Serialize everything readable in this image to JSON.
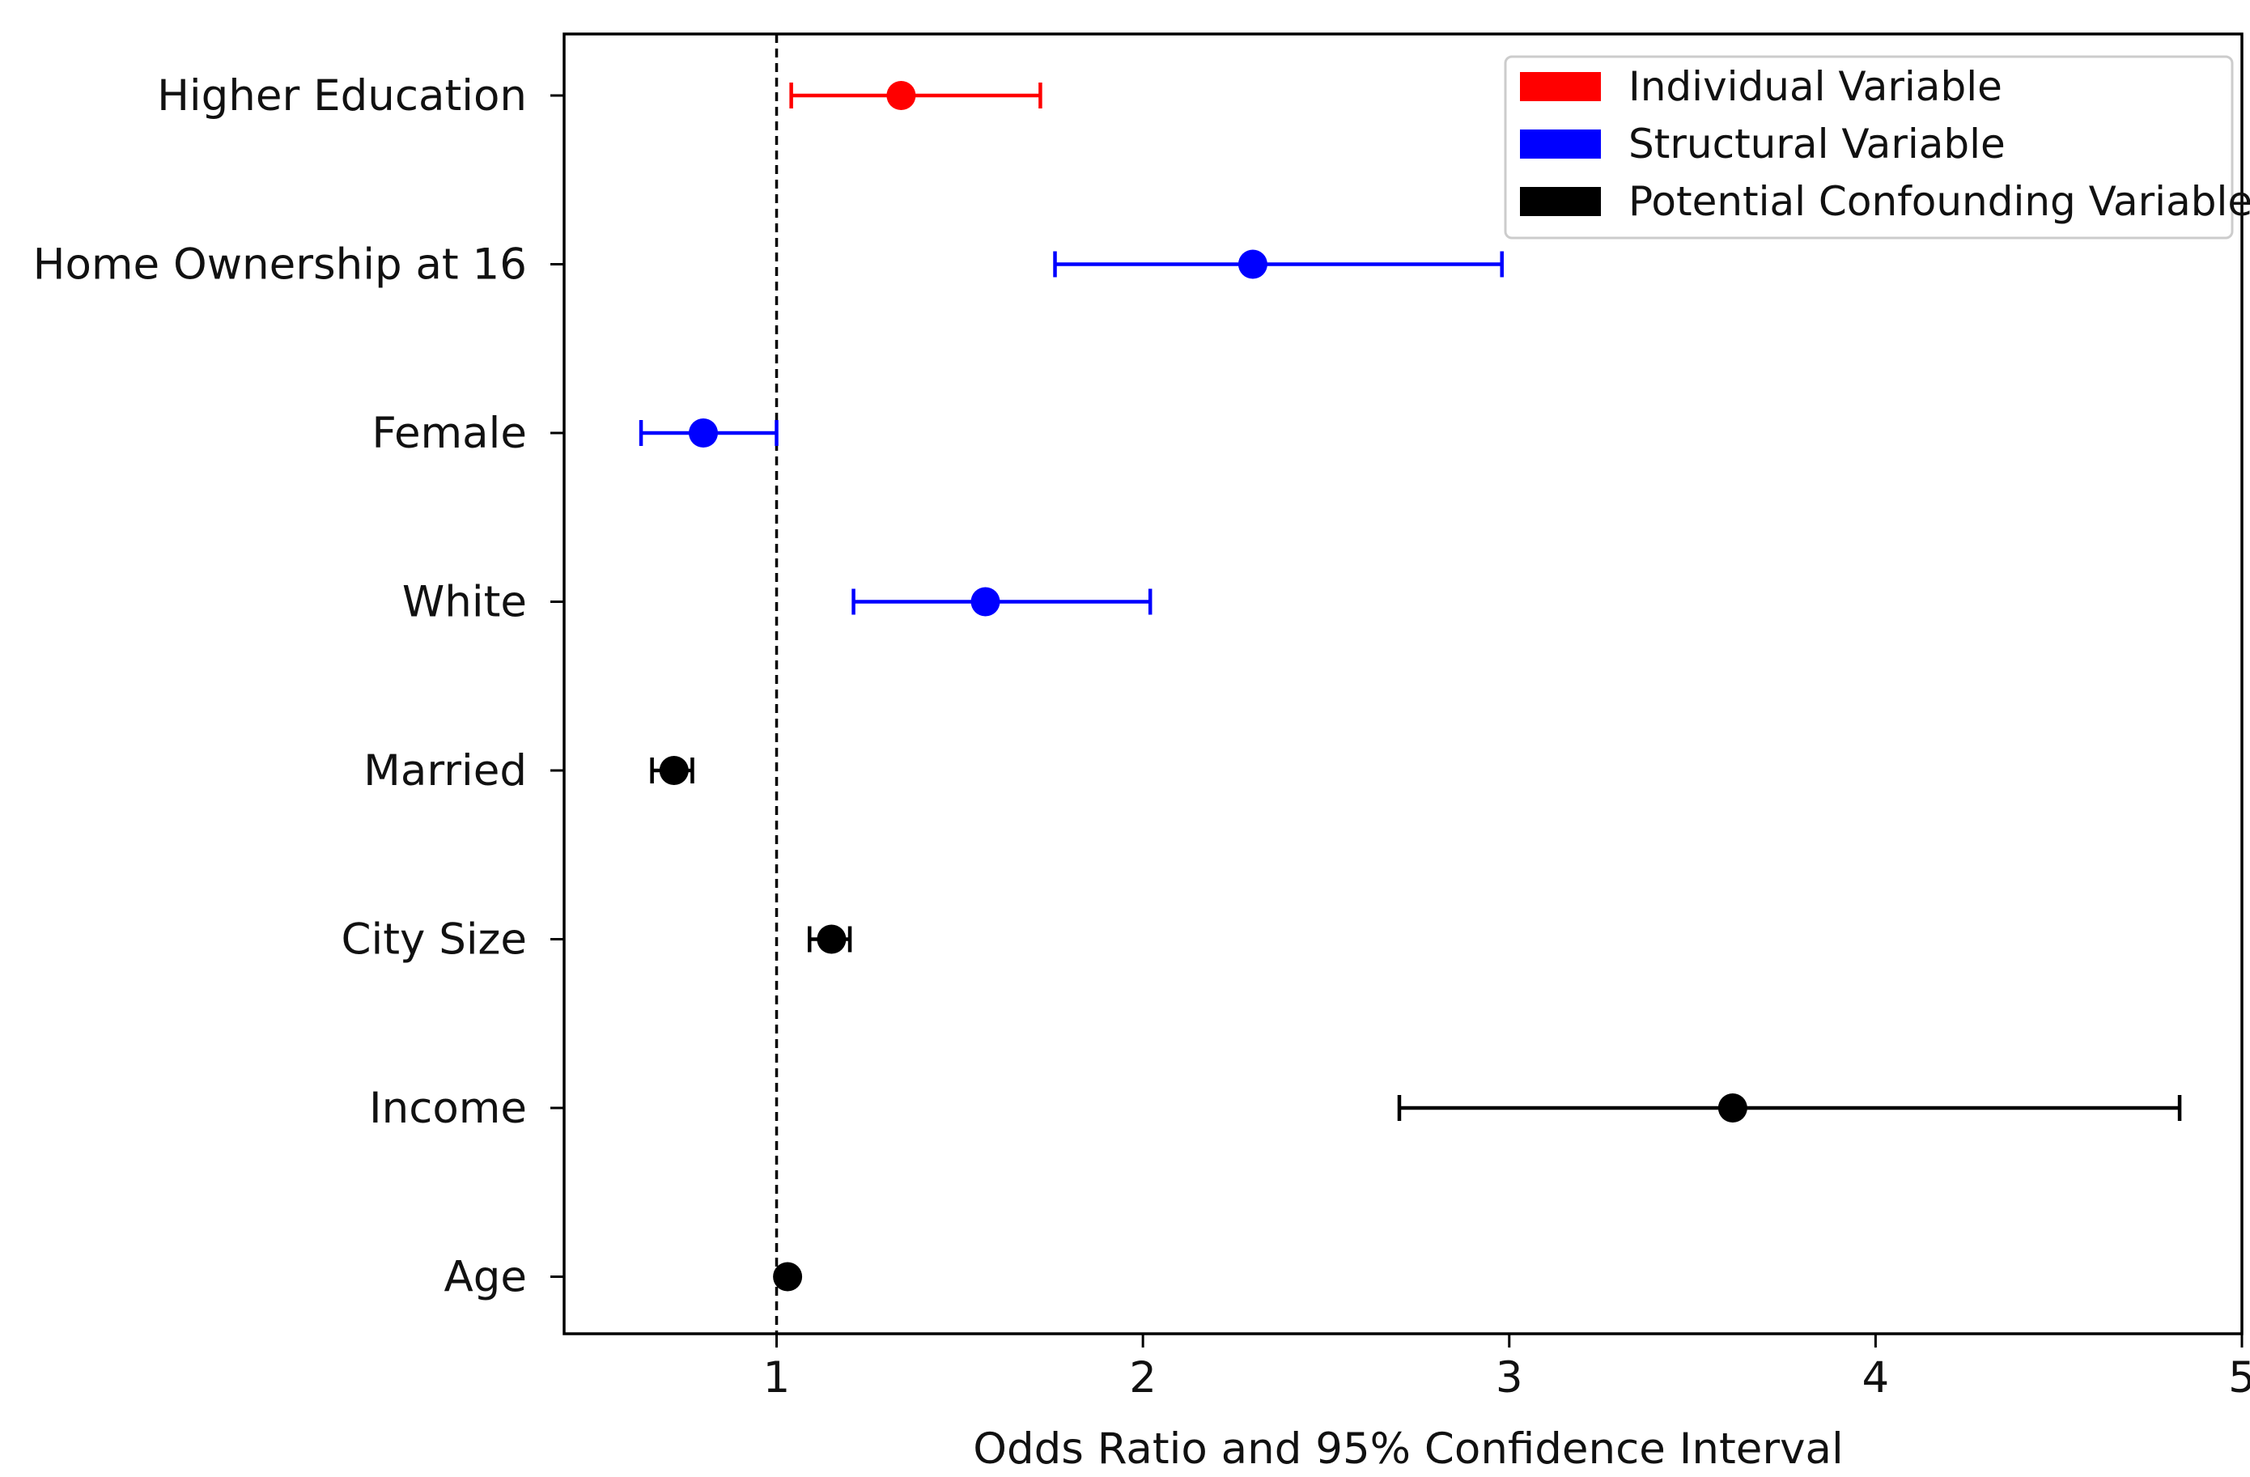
{
  "chart_data": {
    "type": "scatter",
    "title": "",
    "xlabel": "Odds Ratio and 95% Confidence Interval",
    "ylabel": "",
    "xlim": [
      0.42,
      5.0
    ],
    "xticks": [
      1,
      2,
      3,
      4,
      5
    ],
    "xtick_labels": [
      "1",
      "2",
      "3",
      "4",
      "5"
    ],
    "reference_line": {
      "x": 1,
      "style": "dashed",
      "color": "#000000"
    },
    "grid": false,
    "legend_position": "top-right",
    "categories": [
      "Higher Education",
      "Home Ownership at 16",
      "Female",
      "White",
      "Married",
      "City Size",
      "Income",
      "Age"
    ],
    "series": [
      {
        "name": "Individual Variable",
        "color": "#ff0000",
        "points": [
          {
            "category": "Higher Education",
            "odds_ratio": 1.34,
            "ci_low": 1.04,
            "ci_high": 1.72
          }
        ]
      },
      {
        "name": "Structural Variable",
        "color": "#0000ff",
        "points": [
          {
            "category": "Home Ownership at 16",
            "odds_ratio": 2.3,
            "ci_low": 1.76,
            "ci_high": 2.98
          },
          {
            "category": "Female",
            "odds_ratio": 0.8,
            "ci_low": 0.63,
            "ci_high": 1.0
          },
          {
            "category": "White",
            "odds_ratio": 1.57,
            "ci_low": 1.21,
            "ci_high": 2.02
          }
        ]
      },
      {
        "name": "Potential Confounding Variable",
        "color": "#000000",
        "points": [
          {
            "category": "Married",
            "odds_ratio": 0.72,
            "ci_low": 0.66,
            "ci_high": 0.77
          },
          {
            "category": "City Size",
            "odds_ratio": 1.15,
            "ci_low": 1.09,
            "ci_high": 1.2
          },
          {
            "category": "Income",
            "odds_ratio": 3.61,
            "ci_low": 2.7,
            "ci_high": 4.83
          },
          {
            "category": "Age",
            "odds_ratio": 1.03,
            "ci_low": 1.02,
            "ci_high": 1.04
          }
        ]
      }
    ]
  }
}
